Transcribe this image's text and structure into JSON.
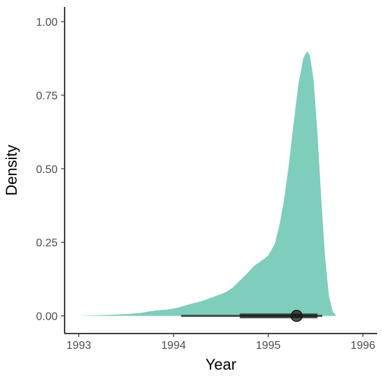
{
  "chart_data": {
    "type": "area",
    "title": "",
    "xlabel": "Year",
    "ylabel": "Density",
    "xlim": [
      1992.85,
      1996.15
    ],
    "ylim": [
      -0.06,
      1.05
    ],
    "x_ticks": [
      1993,
      1994,
      1995,
      1996
    ],
    "x_tick_labels": [
      "1993",
      "1994",
      "1995",
      "1996"
    ],
    "y_ticks": [
      0,
      0.25,
      0.5,
      0.75,
      1.0
    ],
    "y_tick_labels": [
      "0.00",
      "0.25",
      "0.50",
      "0.75",
      "1.00"
    ],
    "grid": false,
    "legend": "none",
    "fill_color": "#7fcdbb",
    "interval_color": "#1a1a1a",
    "density": {
      "x": [
        1992.98,
        1993.2,
        1993.35,
        1993.5,
        1993.65,
        1993.8,
        1993.95,
        1994.05,
        1994.15,
        1994.3,
        1994.45,
        1994.55,
        1994.62,
        1994.7,
        1994.78,
        1994.85,
        1994.92,
        1995.0,
        1995.07,
        1995.12,
        1995.17,
        1995.22,
        1995.27,
        1995.32,
        1995.37,
        1995.41,
        1995.44,
        1995.48,
        1995.52,
        1995.56,
        1995.6,
        1995.64,
        1995.68,
        1995.72
      ],
      "y": [
        0.0,
        0.002,
        0.004,
        0.006,
        0.01,
        0.018,
        0.022,
        0.028,
        0.038,
        0.05,
        0.068,
        0.08,
        0.095,
        0.12,
        0.145,
        0.17,
        0.185,
        0.205,
        0.245,
        0.31,
        0.4,
        0.52,
        0.66,
        0.79,
        0.875,
        0.9,
        0.885,
        0.8,
        0.62,
        0.4,
        0.2,
        0.07,
        0.015,
        0.0
      ]
    },
    "point_estimate": 1995.3,
    "interval_thin": [
      1994.08,
      1995.57
    ],
    "interval_thick": [
      1994.7,
      1995.52
    ]
  }
}
